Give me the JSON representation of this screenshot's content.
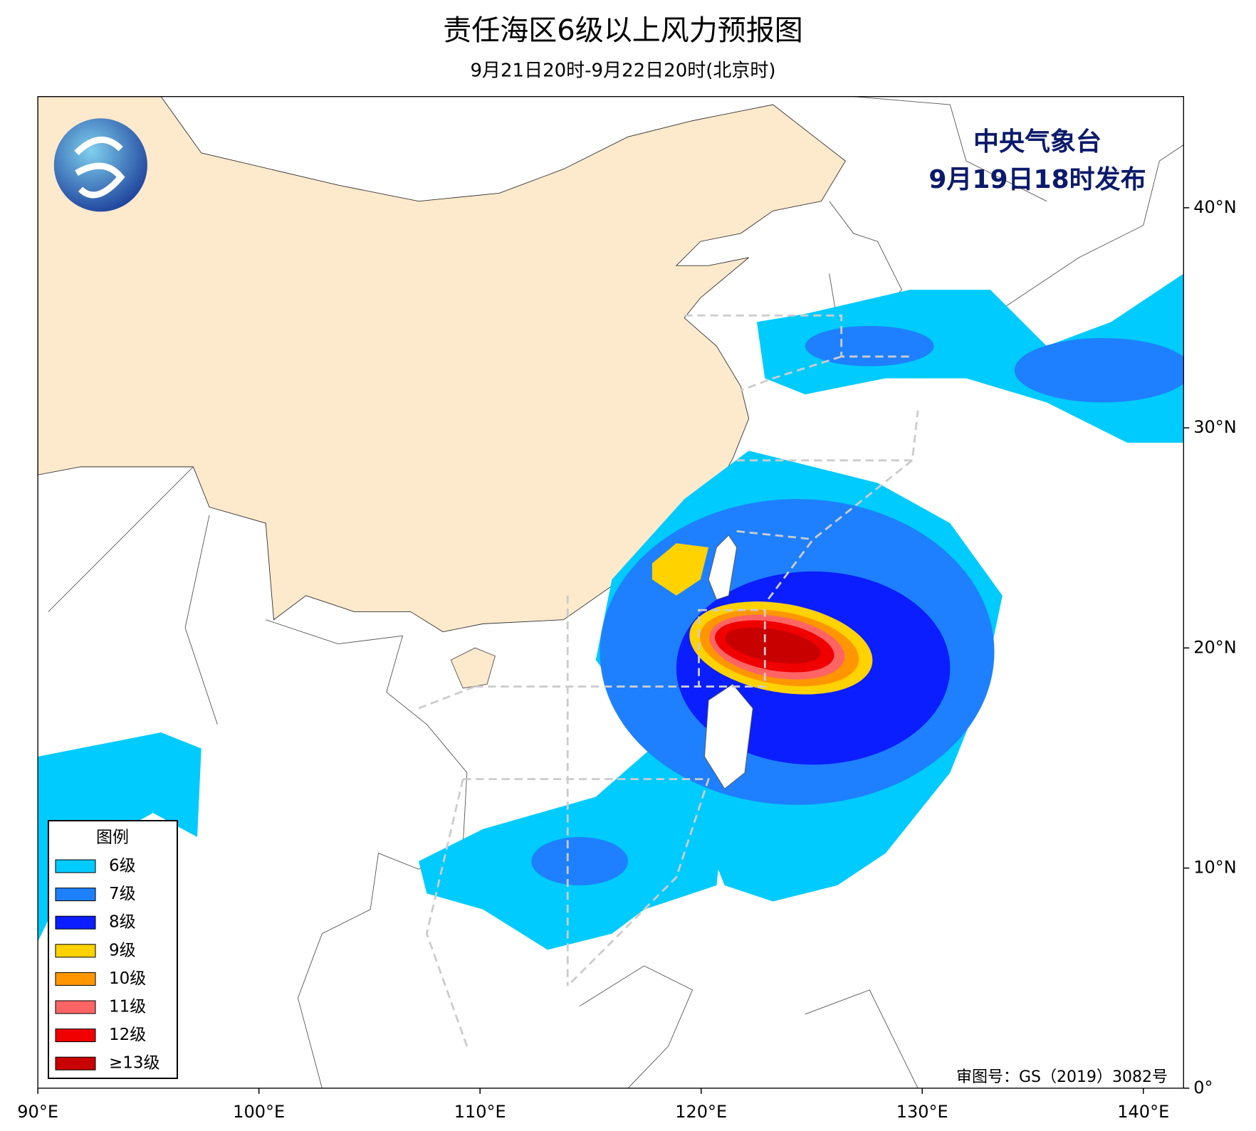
{
  "header": {
    "title": "责任海区6级以上风力预报图",
    "subtitle": "9月21日20时-9月22日20时(北京时)"
  },
  "issuer": {
    "agency": "中央气象台",
    "issued": "9月19日18时发布"
  },
  "map": {
    "xlim": [
      90,
      141.82
    ],
    "ylim": [
      0,
      45.05
    ],
    "xticks": [
      {
        "value": 90,
        "label": "90°E"
      },
      {
        "value": 100,
        "label": "100°E"
      },
      {
        "value": 110,
        "label": "110°E"
      },
      {
        "value": 120,
        "label": "120°E"
      },
      {
        "value": 130,
        "label": "130°E"
      },
      {
        "value": 140,
        "label": "140°E"
      }
    ],
    "yticks": [
      {
        "value": 0,
        "label": "0°"
      },
      {
        "value": 10,
        "label": "10°N"
      },
      {
        "value": 20,
        "label": "20°N"
      },
      {
        "value": 30,
        "label": "30°N"
      },
      {
        "value": 40,
        "label": "40°N"
      }
    ]
  },
  "legend": {
    "title": "图例",
    "items": [
      {
        "label": "6级",
        "color": "#00cbff"
      },
      {
        "label": "7级",
        "color": "#1e80ff"
      },
      {
        "label": "8级",
        "color": "#0a1eff"
      },
      {
        "label": "9级",
        "color": "#ffd200"
      },
      {
        "label": "10级",
        "color": "#ff9600"
      },
      {
        "label": "11级",
        "color": "#ff6464"
      },
      {
        "label": "12级",
        "color": "#f00000"
      },
      {
        "label": "≥13级",
        "color": "#c80000"
      }
    ]
  },
  "footer": {
    "approval": "审图号：GS（2019）3082号"
  }
}
